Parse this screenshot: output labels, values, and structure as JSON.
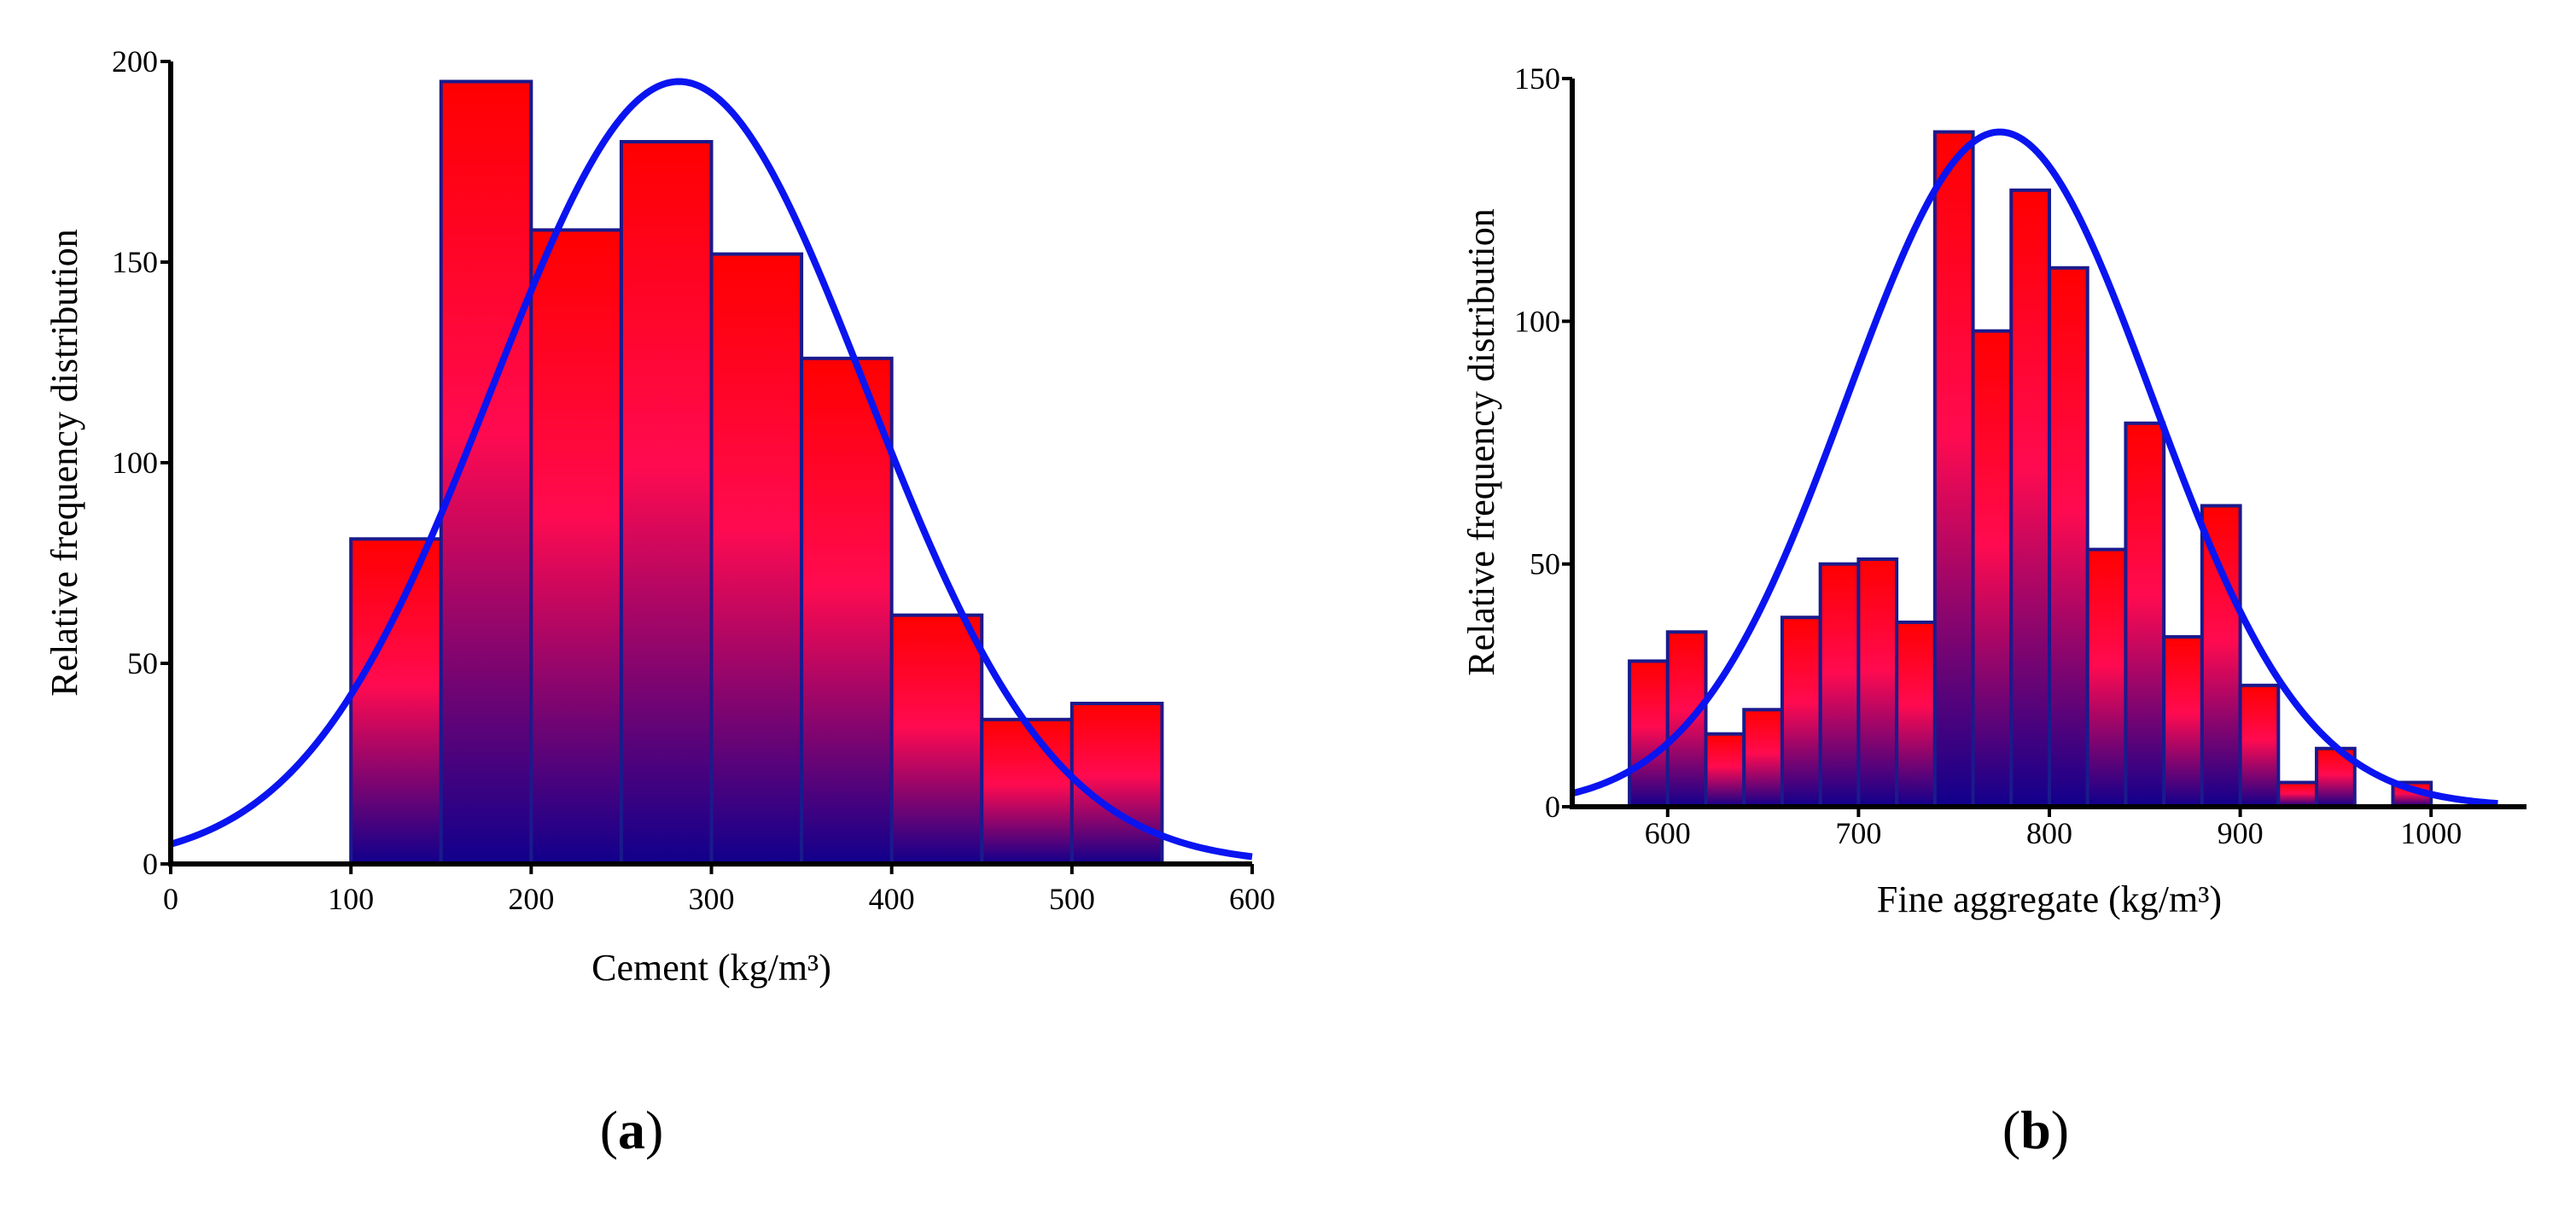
{
  "chart_data": [
    {
      "panel_label": "a",
      "type": "bar",
      "subtype": "histogram",
      "title": "",
      "xlabel": "Cement (kg/m³)",
      "ylabel": "Relative frequency distribution",
      "xlim": [
        0,
        600
      ],
      "ylim": [
        0,
        200
      ],
      "xticks": [
        0,
        100,
        200,
        300,
        400,
        500,
        600
      ],
      "yticks": [
        0,
        50,
        100,
        150,
        200
      ],
      "bins": [
        {
          "x0": 100,
          "x1": 150,
          "value": 81
        },
        {
          "x0": 150,
          "x1": 200,
          "value": 195
        },
        {
          "x0": 200,
          "x1": 250,
          "value": 158
        },
        {
          "x0": 250,
          "x1": 300,
          "value": 180
        },
        {
          "x0": 300,
          "x1": 350,
          "value": 152
        },
        {
          "x0": 350,
          "x1": 400,
          "value": 126
        },
        {
          "x0": 400,
          "x1": 450,
          "value": 62
        },
        {
          "x0": 450,
          "x1": 500,
          "value": 36
        },
        {
          "x0": 500,
          "x1": 550,
          "value": 40
        }
      ],
      "fit_curve": {
        "type": "normal",
        "mean": 282,
        "sd": 104,
        "peak": 195,
        "x_range": [
          0,
          600
        ]
      },
      "colors": {
        "bar_top": "#ff0000",
        "bar_mid": "#ff0a50",
        "bar_bottom": "#10008c",
        "bar_edge": "#1a1a8c",
        "curve": "#0a14f0",
        "axis": "#000000"
      }
    },
    {
      "panel_label": "b",
      "type": "bar",
      "subtype": "histogram",
      "title": "",
      "xlabel": "Fine aggregate (kg/m³)",
      "ylabel": "Relative frequency distribution",
      "xlim": [
        550,
        1050
      ],
      "ylim": [
        0,
        150
      ],
      "xticks": [
        600,
        700,
        800,
        900,
        1000
      ],
      "yticks": [
        0,
        50,
        100,
        150
      ],
      "bins": [
        {
          "x0": 580,
          "x1": 600,
          "value": 30
        },
        {
          "x0": 600,
          "x1": 620,
          "value": 36
        },
        {
          "x0": 620,
          "x1": 640,
          "value": 15
        },
        {
          "x0": 640,
          "x1": 660,
          "value": 20
        },
        {
          "x0": 660,
          "x1": 680,
          "value": 39
        },
        {
          "x0": 680,
          "x1": 700,
          "value": 50
        },
        {
          "x0": 700,
          "x1": 720,
          "value": 51
        },
        {
          "x0": 720,
          "x1": 740,
          "value": 38
        },
        {
          "x0": 740,
          "x1": 760,
          "value": 139
        },
        {
          "x0": 760,
          "x1": 780,
          "value": 98
        },
        {
          "x0": 780,
          "x1": 800,
          "value": 127
        },
        {
          "x0": 800,
          "x1": 820,
          "value": 111
        },
        {
          "x0": 820,
          "x1": 840,
          "value": 53
        },
        {
          "x0": 840,
          "x1": 860,
          "value": 79
        },
        {
          "x0": 860,
          "x1": 880,
          "value": 35
        },
        {
          "x0": 880,
          "x1": 900,
          "value": 62
        },
        {
          "x0": 900,
          "x1": 920,
          "value": 25
        },
        {
          "x0": 920,
          "x1": 940,
          "value": 5
        },
        {
          "x0": 940,
          "x1": 960,
          "value": 12
        },
        {
          "x0": 980,
          "x1": 1000,
          "value": 5
        }
      ],
      "fit_curve": {
        "type": "normal",
        "mean": 774,
        "sd": 80,
        "peak": 139,
        "x_range": [
          550,
          1035
        ]
      },
      "colors": {
        "bar_top": "#ff0000",
        "bar_mid": "#ff0a50",
        "bar_bottom": "#10008c",
        "bar_edge": "#1a1a8c",
        "curve": "#0a14f0",
        "axis": "#000000"
      }
    }
  ]
}
